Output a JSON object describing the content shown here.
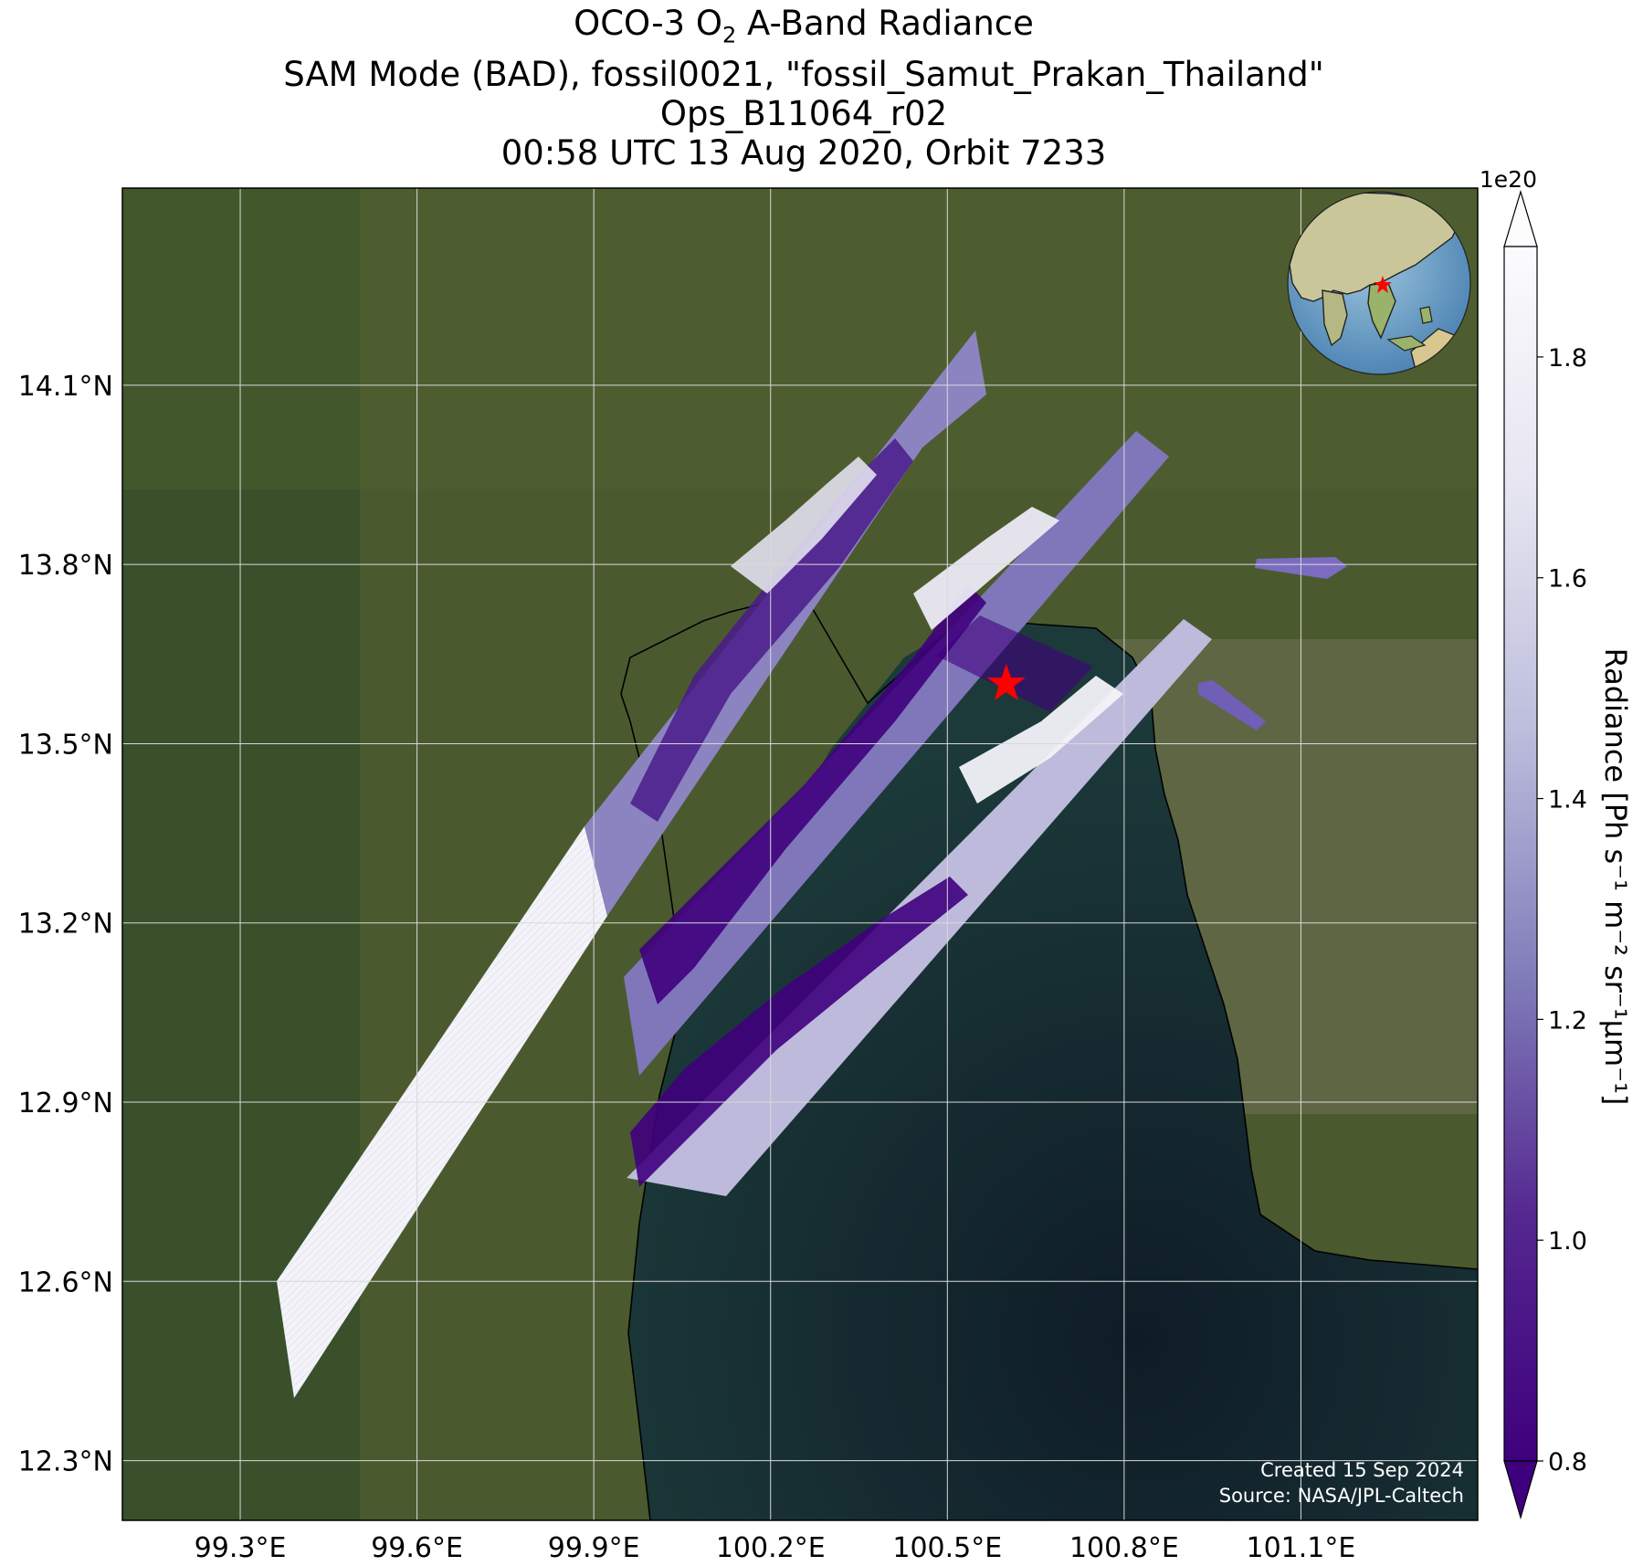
{
  "title": {
    "line1_prefix": "OCO-3 O",
    "line1_sub": "2",
    "line1_suffix": " A-Band Radiance",
    "line2": "SAM Mode (BAD), fossil0021, \"fossil_Samut_Prakan_Thailand\"",
    "line3": "Ops_B11064_r02",
    "line4": "00:58 UTC 13 Aug 2020, Orbit 7233"
  },
  "map": {
    "lon_range": [
      99.1,
      101.4
    ],
    "lat_range": [
      12.2,
      14.43
    ],
    "lon_ticks": [
      "99.3°E",
      "99.6°E",
      "99.9°E",
      "100.2°E",
      "100.5°E",
      "100.8°E",
      "101.1°E"
    ],
    "lon_tick_values": [
      99.3,
      99.6,
      99.9,
      100.2,
      100.5,
      100.8,
      101.1
    ],
    "lat_ticks": [
      "14.1°N",
      "13.8°N",
      "13.5°N",
      "13.2°N",
      "12.9°N",
      "12.6°N",
      "12.3°N"
    ],
    "lat_tick_values": [
      14.1,
      13.8,
      13.5,
      13.2,
      12.9,
      12.6,
      12.3
    ],
    "target": {
      "lon": 100.6,
      "lat": 13.6,
      "color": "#ff0000"
    },
    "colors": {
      "land": "#4a5a2e",
      "sea": "#13222e",
      "gridline": "#d9d9d9"
    }
  },
  "colorbar": {
    "label": "Radiance [Ph s⁻¹ m⁻² sr⁻¹μm⁻¹]",
    "scale_label": "1e20",
    "range": [
      0.8,
      1.9
    ],
    "tick_labels": [
      "1.8",
      "1.6",
      "1.4",
      "1.2",
      "1.0",
      "0.8"
    ],
    "tick_values": [
      1.8,
      1.6,
      1.4,
      1.2,
      1.0,
      0.8
    ],
    "colormap": "Purples_r",
    "color_min": "#3f007d",
    "color_max": "#fcfbfd"
  },
  "notes": {
    "created": "Created 15 Sep 2024",
    "source": "Source: NASA/JPL-Caltech"
  }
}
